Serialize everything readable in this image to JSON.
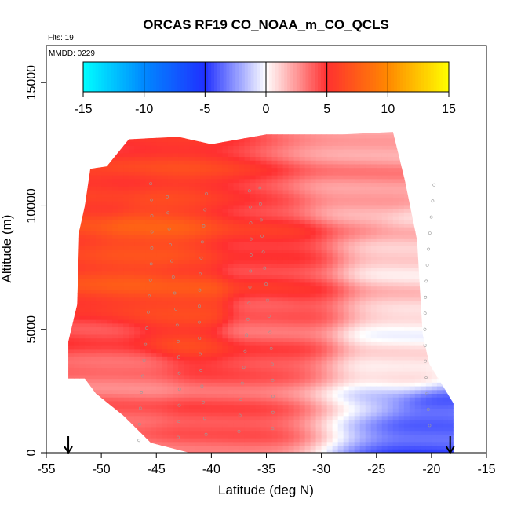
{
  "chart_data": {
    "type": "heatmap",
    "title": "ORCAS RF19 CO_NOAA_m_CO_QCLS",
    "flights_label": "Flts: 19",
    "date_label": "MMDD: 0229",
    "xlabel": "Latitude (deg N)",
    "ylabel": "Altitude (m)",
    "xlim": [
      -55,
      -15
    ],
    "ylim": [
      0,
      16500
    ],
    "x_ticks": [
      -55,
      -50,
      -45,
      -40,
      -35,
      -30,
      -25,
      -20,
      -15
    ],
    "y_ticks": [
      0,
      5000,
      10000,
      15000
    ],
    "colorbar": {
      "ticks": [
        -15,
        -10,
        -5,
        0,
        5,
        10,
        15
      ],
      "range": [
        -15,
        15
      ],
      "stops": [
        {
          "value": -15,
          "color": "#00FFFF"
        },
        {
          "value": -10,
          "color": "#0088FF"
        },
        {
          "value": -5,
          "color": "#2030FF"
        },
        {
          "value": 0,
          "color": "#FFFFFF"
        },
        {
          "value": 5,
          "color": "#FF3030"
        },
        {
          "value": 10,
          "color": "#FF8800"
        },
        {
          "value": 15,
          "color": "#FFFF00"
        }
      ]
    },
    "data_extent": {
      "lat_south_min": -53.0,
      "lat_north_max": -18.0,
      "alt_min": 0,
      "alt_max": 13000
    },
    "difference_field_ppb": [
      {
        "lat": -51,
        "alt": 12000,
        "value": 5
      },
      {
        "lat": -51,
        "alt": 10800,
        "value": 6
      },
      {
        "lat": -46,
        "alt": 8500,
        "value": 7
      },
      {
        "lat": -42,
        "alt": 6200,
        "value": 6.5
      },
      {
        "lat": -35,
        "alt": 7500,
        "value": 5
      },
      {
        "lat": -35,
        "alt": 5500,
        "value": 4
      },
      {
        "lat": -25,
        "alt": 11000,
        "value": 2.5
      },
      {
        "lat": -22,
        "alt": 8000,
        "value": 1.2
      },
      {
        "lat": -22,
        "alt": 4000,
        "value": 0.5
      },
      {
        "lat": -20,
        "alt": 800,
        "value": -4
      },
      {
        "lat": -48,
        "alt": 2500,
        "value": 3.5
      },
      {
        "lat": -40,
        "alt": 500,
        "value": 4
      }
    ],
    "profile_markers_lat": [
      -53.0,
      -18.3
    ]
  }
}
